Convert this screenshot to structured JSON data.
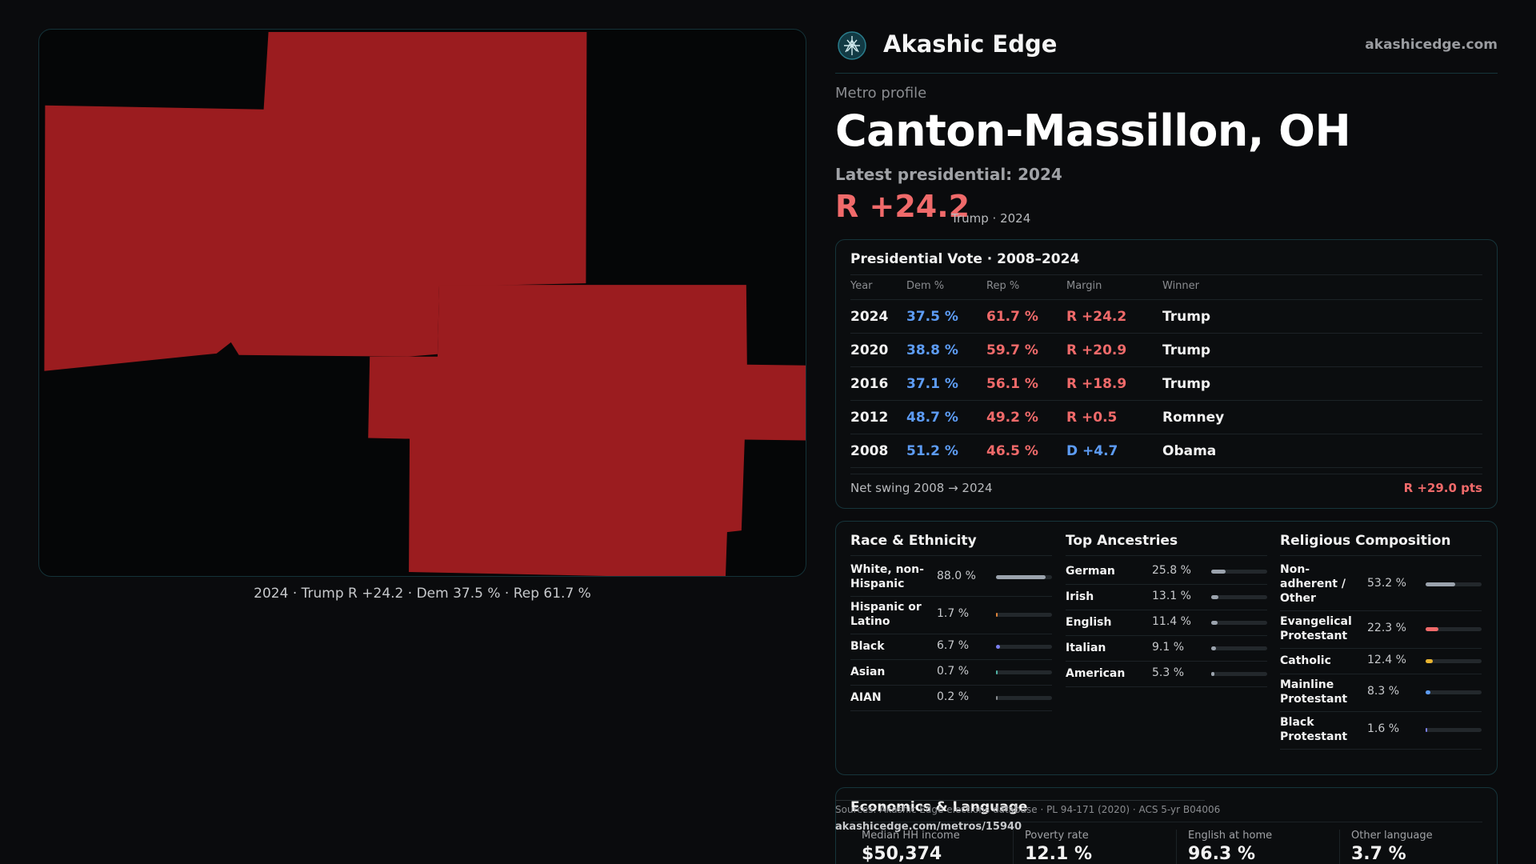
{
  "map": {
    "caption": "2024 · Trump R +24.2 · Dem 37.5 % · Rep 61.7 %",
    "fill_color": "#9b1c1f"
  },
  "header": {
    "brand": "Akashic Edge",
    "site": "akashicedge.com",
    "logo_icon": "akashic-logo-icon"
  },
  "profile": {
    "kicker": "Metro profile",
    "title": "Canton-Massillon, OH",
    "latest_label": "Latest presidential: 2024",
    "margin": "R +24.2",
    "margin_sub": "Trump · 2024"
  },
  "vote": {
    "title": "Presidential Vote · 2008–2024",
    "headers": {
      "year": "Year",
      "dem": "Dem %",
      "rep": "Rep %",
      "margin": "Margin",
      "winner": "Winner"
    },
    "rows": [
      {
        "year": "2024",
        "dem": "37.5 %",
        "rep": "61.7 %",
        "margin": "R +24.2",
        "party": "R",
        "winner": "Trump"
      },
      {
        "year": "2020",
        "dem": "38.8 %",
        "rep": "59.7 %",
        "margin": "R +20.9",
        "party": "R",
        "winner": "Trump"
      },
      {
        "year": "2016",
        "dem": "37.1 %",
        "rep": "56.1 %",
        "margin": "R +18.9",
        "party": "R",
        "winner": "Trump"
      },
      {
        "year": "2012",
        "dem": "48.7 %",
        "rep": "49.2 %",
        "margin": "R +0.5",
        "party": "R",
        "winner": "Romney"
      },
      {
        "year": "2008",
        "dem": "51.2 %",
        "rep": "46.5 %",
        "margin": "D +4.7",
        "party": "D",
        "winner": "Obama"
      }
    ],
    "swing_label": "Net swing 2008 → 2024",
    "swing_value": "R +29.0 pts"
  },
  "race": {
    "title": "Race & Ethnicity",
    "items": [
      {
        "label": "White, non-Hispanic",
        "value": "88.0 %",
        "pct": 88.0,
        "color": "#9ba3ad"
      },
      {
        "label": "Hispanic or Latino",
        "value": "1.7 %",
        "pct": 1.7,
        "color": "#e0843a"
      },
      {
        "label": "Black",
        "value": "6.7 %",
        "pct": 6.7,
        "color": "#7b7ff0"
      },
      {
        "label": "Asian",
        "value": "0.7 %",
        "pct": 0.7,
        "color": "#4fb3a5"
      },
      {
        "label": "AIAN",
        "value": "0.2 %",
        "pct": 0.2,
        "color": "#8a8c90"
      }
    ]
  },
  "ancestry": {
    "title": "Top Ancestries",
    "items": [
      {
        "label": "German",
        "value": "25.8 %",
        "pct": 25.8,
        "color": "#9ba3ad"
      },
      {
        "label": "Irish",
        "value": "13.1 %",
        "pct": 13.1,
        "color": "#9ba3ad"
      },
      {
        "label": "English",
        "value": "11.4 %",
        "pct": 11.4,
        "color": "#9ba3ad"
      },
      {
        "label": "Italian",
        "value": "9.1 %",
        "pct": 9.1,
        "color": "#9ba3ad"
      },
      {
        "label": "American",
        "value": "5.3 %",
        "pct": 5.3,
        "color": "#9ba3ad"
      }
    ]
  },
  "religion": {
    "title": "Religious Composition",
    "items": [
      {
        "label": "Non-adherent / Other",
        "value": "53.2 %",
        "pct": 53.2,
        "color": "#9ba3ad"
      },
      {
        "label": "Evangelical Protestant",
        "value": "22.3 %",
        "pct": 22.3,
        "color": "#f06a6a"
      },
      {
        "label": "Catholic",
        "value": "12.4 %",
        "pct": 12.4,
        "color": "#e8b431"
      },
      {
        "label": "Mainline Protestant",
        "value": "8.3 %",
        "pct": 8.3,
        "color": "#5d9cf5"
      },
      {
        "label": "Black Protestant",
        "value": "1.6 %",
        "pct": 1.6,
        "color": "#7b7ff0"
      }
    ]
  },
  "economics": {
    "title": "Economics & Language",
    "items": [
      {
        "label": "Median HH income",
        "value": "$50,374"
      },
      {
        "label": "Poverty rate",
        "value": "12.1 %"
      },
      {
        "label": "English at home",
        "value": "96.3 %"
      },
      {
        "label": "Other language",
        "value": "3.7 %"
      }
    ]
  },
  "footer": {
    "sources": "Sources: Akashic Edge elections database · PL 94-171 (2020) · ACS 5-yr B04006",
    "permalink": "akashicedge.com/metros/15940"
  }
}
